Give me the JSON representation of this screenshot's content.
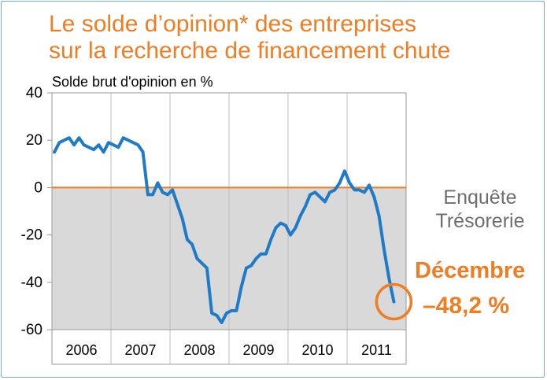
{
  "title_line1": "Le solde d’opinion* des entreprises",
  "title_line2": "sur la recherche de financement chute",
  "annotation": {
    "source_line1": "Enquête",
    "source_line2": "Trésorerie",
    "month": "Décembre",
    "value": "–48,2 %"
  },
  "colors": {
    "title": "#ee7d24",
    "series": "#1f7bc8",
    "zero_line": "#ee7d24",
    "negative_fill": "#d9d9d9",
    "frame": "#7ba7c9"
  },
  "chart_data": {
    "type": "line",
    "title": "",
    "ylabel": "Solde brut d'opinion en %",
    "xlabel": "",
    "ylim": [
      -60,
      40
    ],
    "yticks": [
      40,
      20,
      0,
      -20,
      -40,
      -60
    ],
    "year_labels": [
      "2006",
      "2007",
      "2008",
      "2009",
      "2010",
      "2011"
    ],
    "x_start": "2006-01",
    "x_end": "2011-12",
    "grid": "vertical lines between years",
    "negative_area_shaded": true,
    "series": [
      {
        "name": "",
        "values": [
          15,
          19,
          20,
          21,
          18,
          21,
          18,
          17,
          16,
          18,
          15,
          19,
          18,
          17,
          21,
          20,
          19,
          18,
          15,
          -3,
          -3,
          2,
          -2,
          -3,
          -1,
          -7,
          -13,
          -22,
          -24,
          -30,
          -32,
          -34,
          -53,
          -54,
          -57,
          -53,
          -52,
          -52,
          -42,
          -34,
          -33,
          -30,
          -28,
          -28,
          -22,
          -17,
          -15,
          -16,
          -20,
          -17,
          -12,
          -8,
          -3,
          -2,
          -4,
          -6,
          -2,
          -1,
          2,
          7,
          2,
          -1,
          -1,
          -2,
          1,
          -4,
          -12,
          -26,
          -38,
          -48.2
        ]
      }
    ]
  }
}
